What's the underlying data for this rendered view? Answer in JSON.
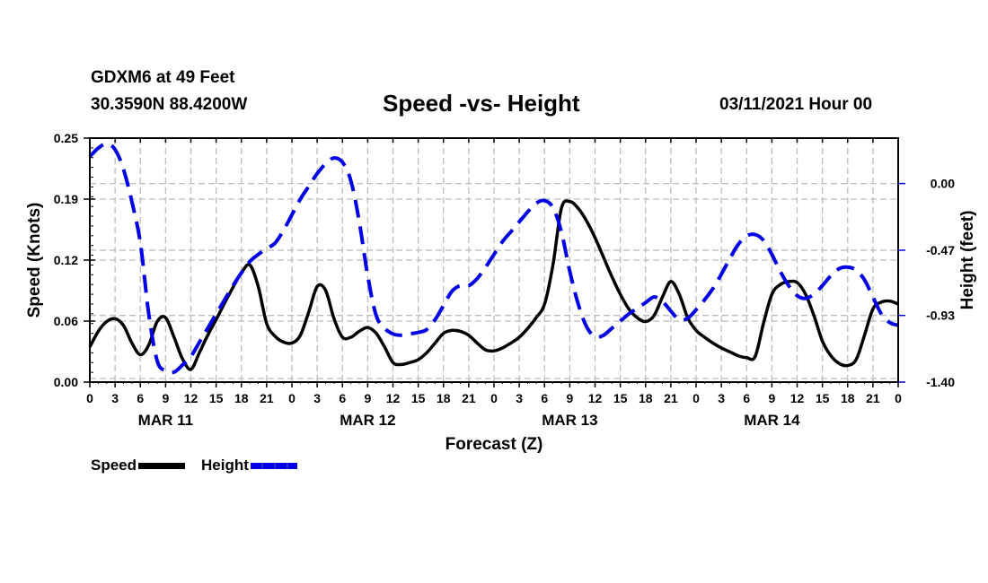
{
  "header": {
    "station": "GDXM6 at 49 Feet",
    "coordinates": "30.3590N 88.4200W",
    "title": "Speed -vs- Height",
    "datetime": "03/11/2021 Hour 00"
  },
  "legend": {
    "items": [
      {
        "label": "Speed",
        "style": "solid",
        "color": "#000000"
      },
      {
        "label": "Height",
        "style": "dashed",
        "color": "#0000e6"
      }
    ]
  },
  "chart_data": {
    "type": "line",
    "title": "Speed -vs- Height",
    "xlabel": "Forecast (Z)",
    "ylabel": "Speed (Knots)",
    "y2label": "Height (feet)",
    "x_unit": "forecast hour",
    "xlim": [
      0,
      96
    ],
    "ylim": [
      0,
      0.25
    ],
    "y2lim": [
      -1.4,
      0.32
    ],
    "grid": true,
    "legend_position": "bottom-left",
    "x_tick_labels": [
      "0",
      "3",
      "6",
      "9",
      "12",
      "15",
      "18",
      "21",
      "0",
      "3",
      "6",
      "9",
      "12",
      "15",
      "18",
      "21",
      "0",
      "3",
      "6",
      "9",
      "12",
      "15",
      "18",
      "21",
      "0",
      "3",
      "6",
      "9",
      "12",
      "15",
      "18",
      "21",
      "0"
    ],
    "day_labels": [
      {
        "label": "MAR 11",
        "center_hour": 9
      },
      {
        "label": "MAR 12",
        "center_hour": 33
      },
      {
        "label": "MAR 13",
        "center_hour": 57
      },
      {
        "label": "MAR 14",
        "center_hour": 81
      }
    ],
    "y_ticks": [
      "0.00",
      "0.06",
      "0.12",
      "0.19",
      "0.25"
    ],
    "y_tick_values": [
      0.0,
      0.0625,
      0.125,
      0.1875,
      0.25
    ],
    "y2_ticks": [
      "-1.40",
      "-0.93",
      "-0.47",
      "0.00"
    ],
    "y2_tick_values": [
      -1.4,
      -0.93,
      -0.47,
      0.0
    ],
    "series": [
      {
        "name": "Speed",
        "axis": "left",
        "color": "#000000",
        "style": "solid",
        "x": [
          0,
          1,
          2,
          3,
          4,
          5,
          6,
          7,
          8,
          9,
          10,
          11,
          12,
          13,
          14,
          15,
          16,
          17,
          18,
          19,
          20,
          21,
          22,
          23,
          24,
          25,
          26,
          27,
          28,
          29,
          30,
          31,
          32,
          33,
          34,
          35,
          36,
          37,
          38,
          39,
          40,
          41,
          42,
          43,
          44,
          45,
          46,
          47,
          48,
          49,
          50,
          51,
          52,
          53,
          54,
          55,
          56,
          57,
          58,
          59,
          60,
          61,
          62,
          63,
          64,
          65,
          66,
          67,
          68,
          69,
          70,
          71,
          72,
          73,
          74,
          75,
          76,
          77,
          78,
          79,
          80,
          81,
          82,
          83,
          84,
          85,
          86,
          87,
          88,
          89,
          90,
          91,
          92,
          93,
          94,
          95,
          96
        ],
        "values": [
          0.036,
          0.052,
          0.062,
          0.065,
          0.058,
          0.04,
          0.028,
          0.038,
          0.062,
          0.066,
          0.046,
          0.024,
          0.013,
          0.03,
          0.048,
          0.064,
          0.081,
          0.097,
          0.112,
          0.12,
          0.098,
          0.06,
          0.047,
          0.041,
          0.04,
          0.048,
          0.072,
          0.098,
          0.094,
          0.065,
          0.046,
          0.046,
          0.052,
          0.056,
          0.05,
          0.036,
          0.02,
          0.018,
          0.02,
          0.023,
          0.03,
          0.04,
          0.05,
          0.053,
          0.052,
          0.048,
          0.04,
          0.033,
          0.032,
          0.035,
          0.04,
          0.046,
          0.055,
          0.066,
          0.08,
          0.12,
          0.178,
          0.185,
          0.178,
          0.165,
          0.148,
          0.128,
          0.108,
          0.09,
          0.075,
          0.066,
          0.062,
          0.068,
          0.087,
          0.103,
          0.09,
          0.066,
          0.053,
          0.046,
          0.04,
          0.035,
          0.031,
          0.027,
          0.025,
          0.026,
          0.06,
          0.09,
          0.1,
          0.103,
          0.102,
          0.09,
          0.068,
          0.042,
          0.027,
          0.019,
          0.017,
          0.023,
          0.048,
          0.075,
          0.082,
          0.083,
          0.08
        ]
      },
      {
        "name": "Height",
        "axis": "right",
        "color": "#0000e6",
        "style": "dashed",
        "x": [
          0,
          1,
          2,
          3,
          4,
          5,
          6,
          7,
          8,
          9,
          10,
          11,
          12,
          13,
          14,
          15,
          16,
          17,
          18,
          19,
          20,
          21,
          22,
          23,
          24,
          25,
          26,
          27,
          28,
          29,
          30,
          31,
          32,
          33,
          34,
          35,
          36,
          37,
          38,
          39,
          40,
          41,
          42,
          43,
          44,
          45,
          46,
          47,
          48,
          49,
          50,
          51,
          52,
          53,
          54,
          55,
          56,
          57,
          58,
          59,
          60,
          61,
          62,
          63,
          64,
          65,
          66,
          67,
          68,
          69,
          70,
          71,
          72,
          73,
          74,
          75,
          76,
          77,
          78,
          79,
          80,
          81,
          82,
          83,
          84,
          85,
          86,
          87,
          88,
          89,
          90,
          91,
          92,
          93,
          94,
          95,
          96
        ],
        "values": [
          0.19,
          0.25,
          0.28,
          0.24,
          0.1,
          -0.13,
          -0.42,
          -0.92,
          -1.25,
          -1.32,
          -1.33,
          -1.28,
          -1.22,
          -1.12,
          -1.02,
          -0.92,
          -0.82,
          -0.72,
          -0.63,
          -0.55,
          -0.5,
          -0.46,
          -0.42,
          -0.33,
          -0.22,
          -0.11,
          -0.02,
          0.07,
          0.14,
          0.18,
          0.15,
          0.02,
          -0.27,
          -0.65,
          -0.93,
          -1.02,
          -1.06,
          -1.07,
          -1.06,
          -1.05,
          -1.03,
          -0.96,
          -0.86,
          -0.76,
          -0.72,
          -0.72,
          -0.67,
          -0.59,
          -0.5,
          -0.41,
          -0.34,
          -0.27,
          -0.2,
          -0.14,
          -0.12,
          -0.17,
          -0.34,
          -0.62,
          -0.85,
          -1.01,
          -1.08,
          -1.07,
          -1.02,
          -0.97,
          -0.92,
          -0.88,
          -0.84,
          -0.8,
          -0.83,
          -0.9,
          -0.96,
          -0.95,
          -0.89,
          -0.82,
          -0.74,
          -0.64,
          -0.53,
          -0.43,
          -0.37,
          -0.36,
          -0.4,
          -0.5,
          -0.62,
          -0.72,
          -0.79,
          -0.81,
          -0.78,
          -0.72,
          -0.65,
          -0.6,
          -0.59,
          -0.61,
          -0.68,
          -0.8,
          -0.92,
          -0.98,
          -1.0
        ]
      }
    ]
  }
}
